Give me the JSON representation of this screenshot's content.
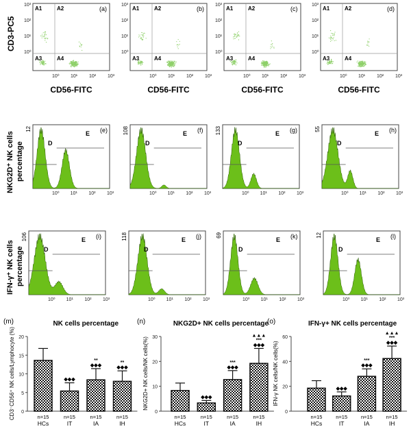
{
  "colors": {
    "histogram_fill": "#6cbf1a",
    "dots": "#8fd06a",
    "bar_pattern": "#000000"
  },
  "flow_row": {
    "y_label": "CD3-PC5",
    "x_label": "CD56-FITC",
    "y_ticks": [
      "10³",
      "10²",
      "10¹",
      "10⁰"
    ],
    "x_ticks": [
      "10⁰",
      "10¹",
      "10²",
      "10³"
    ],
    "quadrants": [
      "A1",
      "A2",
      "A3",
      "A4"
    ],
    "panels": [
      {
        "label": "(a)"
      },
      {
        "label": "(b)"
      },
      {
        "label": "(c)"
      },
      {
        "label": "(d)"
      }
    ]
  },
  "hist_rows": [
    {
      "y_label_1": "NKG2D⁺ NK cells",
      "y_label_2": "percentage",
      "panels": [
        {
          "label": "(e)",
          "ymax": "12",
          "peaks": [
            [
              -0.75,
              1.0,
              0.22
            ],
            [
              0.6,
              0.65,
              0.2
            ]
          ]
        },
        {
          "label": "(f)",
          "ymax": "108",
          "peaks": [
            [
              -0.6,
              1.0,
              0.25
            ],
            [
              0.65,
              0.06,
              0.12
            ]
          ]
        },
        {
          "label": "(g)",
          "ymax": "133",
          "peaks": [
            [
              -0.5,
              1.0,
              0.22
            ],
            [
              0.5,
              0.25,
              0.15
            ]
          ]
        },
        {
          "label": "(h)",
          "ymax": "55",
          "peaks": [
            [
              -0.6,
              1.0,
              0.28
            ],
            [
              0.35,
              0.3,
              0.14
            ]
          ]
        }
      ]
    },
    {
      "y_label_1": "IFN-γ⁺ NK cells",
      "y_label_2": "percentage",
      "panels": [
        {
          "label": "(i)",
          "ymax": "106",
          "peaks": [
            [
              -0.6,
              1.0,
              0.3
            ],
            [
              0.45,
              0.22,
              0.22
            ]
          ]
        },
        {
          "label": "(j)",
          "ymax": "118",
          "peaks": [
            [
              -0.45,
              1.0,
              0.25
            ],
            [
              0.6,
              0.1,
              0.16
            ]
          ]
        },
        {
          "label": "(k)",
          "ymax": "69",
          "peaks": [
            [
              -0.6,
              1.0,
              0.2
            ],
            [
              0.5,
              0.28,
              0.2
            ]
          ]
        },
        {
          "label": "(l)",
          "ymax": "12",
          "peaks": [
            [
              -0.6,
              1.0,
              0.2
            ],
            [
              0.7,
              0.6,
              0.18
            ]
          ]
        }
      ]
    }
  ],
  "hist_common": {
    "x_ticks": [
      "10⁰",
      "10¹",
      "10²",
      "10³"
    ],
    "gate_d": "D",
    "gate_e": "E"
  },
  "chart_data": [
    {
      "type": "bar",
      "panel": "(m)",
      "title": "NK cells percentage",
      "ylabel": "CD3⁻CD56⁺ NK cells/Lymphocyte (%)",
      "categories": [
        "HCs",
        "IT",
        "IA",
        "IH"
      ],
      "n_labels": [
        "n=15",
        "n=15",
        "n=15",
        "n=15"
      ],
      "values": [
        13.6,
        5.4,
        8.4,
        8.0
      ],
      "errors": [
        3.2,
        2.2,
        3.0,
        2.8
      ],
      "annotations": [
        [],
        [
          "◆◆◆"
        ],
        [
          "**",
          "◆◆◆"
        ],
        [
          "**",
          "◆◆◆"
        ]
      ],
      "ylim": [
        0,
        20
      ],
      "yticks": [
        0,
        5,
        10,
        15,
        20
      ]
    },
    {
      "type": "bar",
      "panel": "(n)",
      "title": "NKG2D+ NK cells percentage",
      "ylabel": "NKG2D+ NK cells/NK cells(%)",
      "categories": [
        "HCs",
        "IT",
        "IA",
        "IH"
      ],
      "n_labels": [
        "n=15",
        "n=15",
        "n=15",
        "n=15"
      ],
      "values": [
        8.3,
        3.3,
        12.7,
        19.2
      ],
      "errors": [
        3.0,
        1.0,
        3.6,
        6.0
      ],
      "annotations": [
        [],
        [
          "◆◆◆"
        ],
        [
          "***",
          "◆◆◆"
        ],
        [
          "▲▲▲",
          "***",
          "◆◆◆"
        ]
      ],
      "ylim": [
        0,
        30
      ],
      "yticks": [
        0,
        10,
        20,
        30
      ]
    },
    {
      "type": "bar",
      "panel": "(o)",
      "title": "IFN-γ+ NK cells percentage",
      "ylabel": "IFN-γ NK cells/NK cells(%)",
      "categories": [
        "HCs",
        "IT",
        "IA",
        "IH"
      ],
      "n_labels": [
        "n=15",
        "n=15",
        "n=15",
        "n=15"
      ],
      "values": [
        18.5,
        12.2,
        28.0,
        42.3
      ],
      "errors": [
        6.0,
        3.3,
        6.0,
        10.0
      ],
      "annotations": [
        [],
        [
          "◆◆◆"
        ],
        [
          "***",
          "◆◆◆"
        ],
        [
          "▲▲▲",
          "***",
          "◆◆◆"
        ]
      ],
      "ylim": [
        0,
        60
      ],
      "yticks": [
        0,
        20,
        40,
        60
      ]
    }
  ]
}
